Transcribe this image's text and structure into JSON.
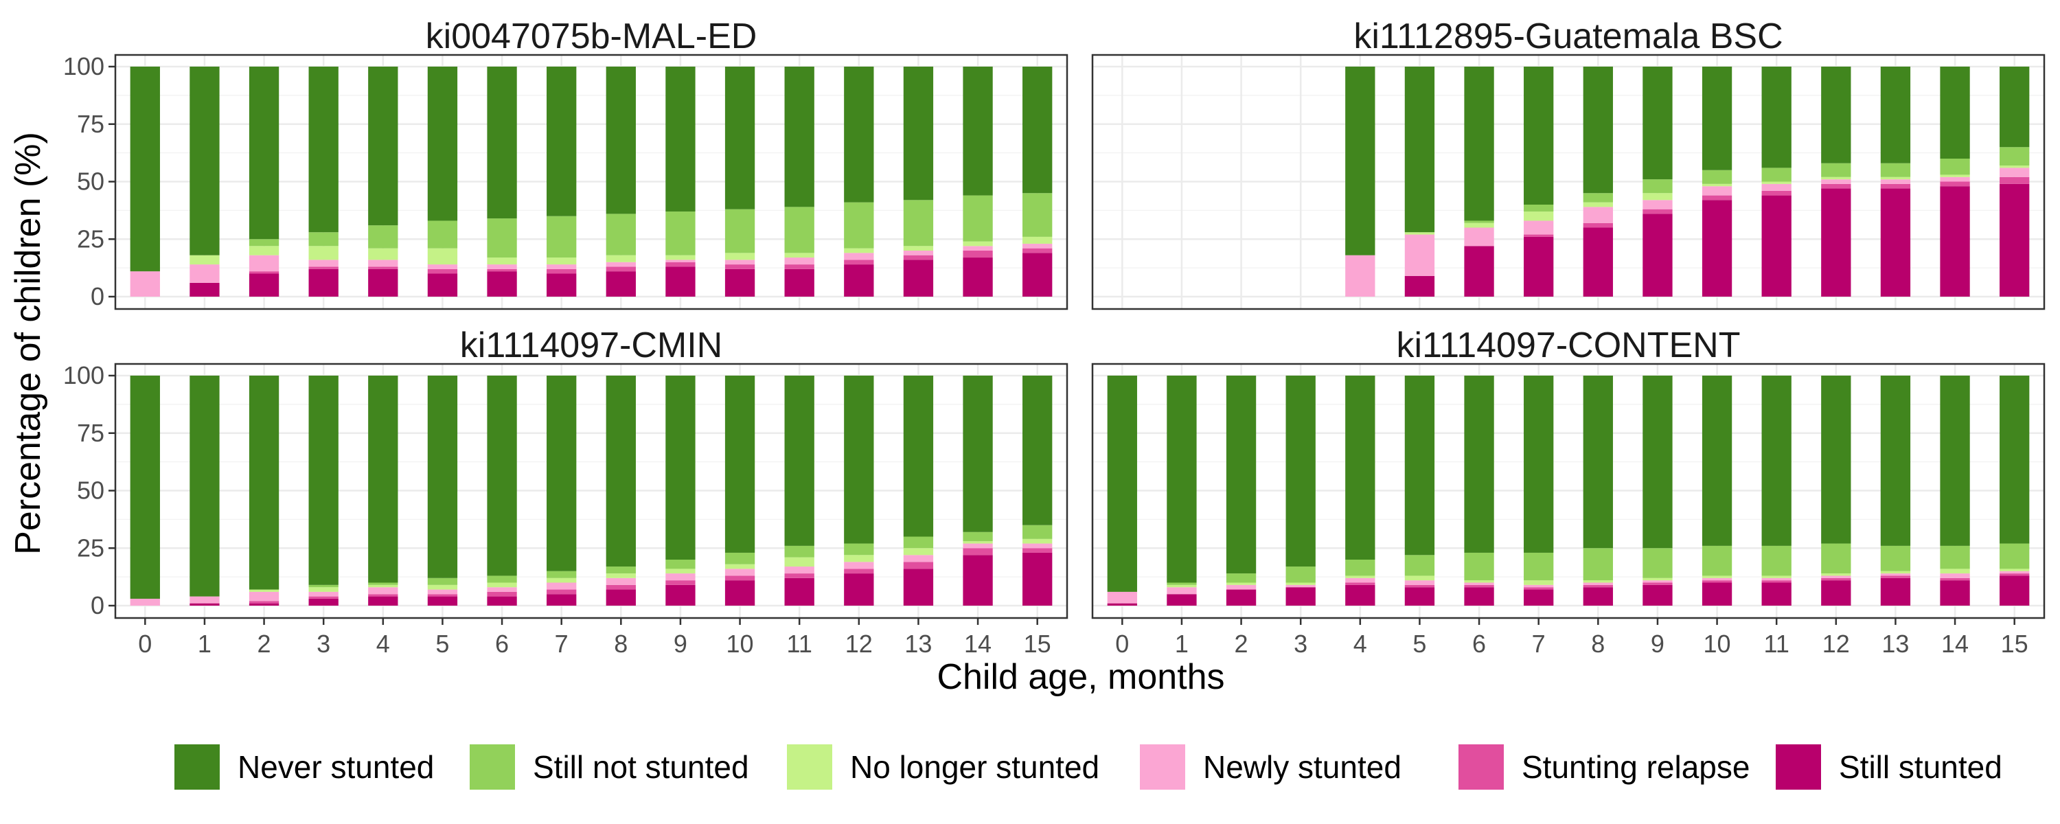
{
  "chart_data": {
    "type": "bar",
    "stacked": true,
    "xlabel": "Child age, months",
    "ylabel": "Percentage of children (%)",
    "ylim": [
      0,
      100
    ],
    "yticks": [
      0,
      25,
      50,
      75,
      100
    ],
    "categories": [
      "0",
      "1",
      "2",
      "3",
      "4",
      "5",
      "6",
      "7",
      "8",
      "9",
      "10",
      "11",
      "12",
      "13",
      "14",
      "15"
    ],
    "grid": true,
    "legend_position": "bottom",
    "series_order": [
      "Still stunted",
      "Stunting relapse",
      "Newly stunted",
      "No longer stunted",
      "Still not stunted",
      "Never stunted"
    ],
    "legend_order": [
      "Never stunted",
      "Still not stunted",
      "No longer stunted",
      "Newly stunted",
      "Stunting relapse",
      "Still stunted"
    ],
    "colors": {
      "Never stunted": "#41861E",
      "Still not stunted": "#92D15A",
      "No longer stunted": "#C5F287",
      "Newly stunted": "#FBA6D3",
      "Stunting relapse": "#E14E9E",
      "Still stunted": "#B8006C"
    },
    "panels": [
      {
        "title": "ki0047075b-MAL-ED",
        "series": [
          {
            "name": "Still stunted",
            "values": [
              0,
              6,
              10,
              12,
              12,
              10,
              11,
              10,
              11,
              13,
              12,
              12,
              14,
              16,
              17,
              19
            ]
          },
          {
            "name": "Stunting relapse",
            "values": [
              0,
              0,
              1,
              1,
              1,
              2,
              1,
              2,
              2,
              2,
              2,
              2,
              2,
              2,
              3,
              2
            ]
          },
          {
            "name": "Newly stunted",
            "values": [
              11,
              8,
              7,
              3,
              3,
              2,
              2,
              2,
              2,
              1,
              2,
              3,
              3,
              2,
              2,
              2
            ]
          },
          {
            "name": "No longer stunted",
            "values": [
              0,
              4,
              4,
              6,
              5,
              7,
              3,
              3,
              3,
              2,
              3,
              2,
              2,
              2,
              2,
              3
            ]
          },
          {
            "name": "Still not stunted",
            "values": [
              0,
              0,
              3,
              6,
              10,
              12,
              17,
              18,
              18,
              19,
              19,
              20,
              20,
              20,
              20,
              19
            ]
          },
          {
            "name": "Never stunted",
            "values": [
              89,
              82,
              75,
              72,
              69,
              67,
              66,
              65,
              64,
              63,
              62,
              61,
              59,
              58,
              56,
              55
            ]
          }
        ]
      },
      {
        "title": "ki1112895-Guatemala BSC",
        "series": [
          {
            "name": "Still stunted",
            "values": [
              null,
              null,
              null,
              null,
              0,
              9,
              22,
              26,
              30,
              36,
              42,
              44,
              47,
              47,
              48,
              49
            ]
          },
          {
            "name": "Stunting relapse",
            "values": [
              null,
              null,
              null,
              null,
              0,
              0,
              0,
              1,
              2,
              2,
              2,
              2,
              2,
              2,
              2,
              3
            ]
          },
          {
            "name": "Newly stunted",
            "values": [
              null,
              null,
              null,
              null,
              18,
              18,
              8,
              6,
              7,
              4,
              4,
              3,
              2,
              2,
              2,
              4
            ]
          },
          {
            "name": "No longer stunted",
            "values": [
              null,
              null,
              null,
              null,
              0,
              1,
              2,
              4,
              2,
              3,
              1,
              1,
              1,
              1,
              1,
              1
            ]
          },
          {
            "name": "Still not stunted",
            "values": [
              null,
              null,
              null,
              null,
              0,
              0,
              1,
              3,
              4,
              6,
              6,
              6,
              6,
              6,
              7,
              8
            ]
          },
          {
            "name": "Never stunted",
            "values": [
              null,
              null,
              null,
              null,
              82,
              72,
              67,
              60,
              55,
              49,
              45,
              44,
              42,
              42,
              40,
              35
            ]
          }
        ]
      },
      {
        "title": "ki1114097-CMIN",
        "series": [
          {
            "name": "Still stunted",
            "values": [
              0,
              1,
              1,
              3,
              4,
              4,
              4,
              5,
              7,
              9,
              11,
              12,
              14,
              16,
              22,
              23
            ]
          },
          {
            "name": "Stunting relapse",
            "values": [
              0,
              0,
              1,
              1,
              1,
              1,
              2,
              2,
              2,
              2,
              2,
              2,
              2,
              3,
              3,
              2
            ]
          },
          {
            "name": "Newly stunted",
            "values": [
              3,
              3,
              4,
              2,
              3,
              2,
              2,
              3,
              3,
              3,
              3,
              3,
              3,
              3,
              2,
              2
            ]
          },
          {
            "name": "No longer stunted",
            "values": [
              0,
              0,
              1,
              2,
              1,
              2,
              2,
              2,
              2,
              2,
              2,
              4,
              3,
              3,
              1,
              2
            ]
          },
          {
            "name": "Still not stunted",
            "values": [
              0,
              0,
              0,
              1,
              1,
              3,
              3,
              3,
              3,
              4,
              5,
              5,
              5,
              5,
              4,
              6
            ]
          },
          {
            "name": "Never stunted",
            "values": [
              97,
              96,
              93,
              91,
              90,
              88,
              87,
              85,
              83,
              80,
              77,
              74,
              73,
              70,
              68,
              65
            ]
          }
        ]
      },
      {
        "title": "ki1114097-CONTENT",
        "series": [
          {
            "name": "Still stunted",
            "values": [
              1,
              5,
              7,
              8,
              9,
              8,
              8,
              7,
              8,
              9,
              10,
              10,
              11,
              12,
              11,
              13
            ]
          },
          {
            "name": "Stunting relapse",
            "values": [
              0,
              0,
              0,
              0,
              1,
              1,
              1,
              1,
              1,
              1,
              1,
              1,
              1,
              1,
              1,
              1
            ]
          },
          {
            "name": "Newly stunted",
            "values": [
              5,
              3,
              2,
              1,
              2,
              2,
              1,
              1,
              1,
              1,
              1,
              1,
              1,
              1,
              2,
              1
            ]
          },
          {
            "name": "No longer stunted",
            "values": [
              0,
              1,
              1,
              1,
              1,
              2,
              1,
              2,
              1,
              1,
              1,
              1,
              1,
              1,
              2,
              1
            ]
          },
          {
            "name": "Still not stunted",
            "values": [
              0,
              1,
              4,
              7,
              7,
              9,
              12,
              12,
              14,
              13,
              13,
              13,
              13,
              11,
              10,
              11
            ]
          },
          {
            "name": "Never stunted",
            "values": [
              94,
              90,
              86,
              83,
              80,
              78,
              77,
              77,
              75,
              75,
              74,
              74,
              73,
              74,
              74,
              73
            ]
          }
        ]
      }
    ]
  }
}
